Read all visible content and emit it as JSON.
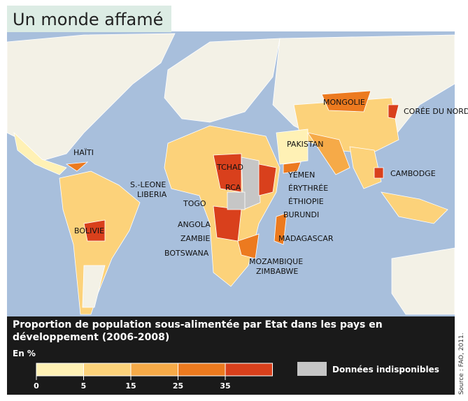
{
  "title": "Un monde affamé",
  "countries": [
    "MONGOLIE",
    "CORÉE DU NORD",
    "HAÏTI",
    "PAKISTAN",
    "TCHAD",
    "YÉMEN",
    "CAMBODGE",
    "S.-LEONE",
    "LIBERIA",
    "RCA",
    "ÉRYTHRÉE",
    "TOGO",
    "ÉTHIOPIE",
    "BURUNDI",
    "ANGOLA",
    "BOLIVIE",
    "MADAGASCAR",
    "ZAMBIE",
    "BOTSWANA",
    "MOZAMBIQUE",
    "ZIMBABWE"
  ],
  "legend": {
    "title": "Proportion de population sous-alimentée par Etat dans les pays en développement (2006-2008)",
    "unit": "En %",
    "ticks": [
      0,
      5,
      15,
      25,
      35
    ],
    "colors": [
      "#fff1b5",
      "#fcd27a",
      "#f6aa48",
      "#ec7a1f",
      "#d9401c"
    ],
    "missing": "Données indisponibles",
    "missing_color": "#c6c6c6"
  },
  "source": "Source : FAO, 2011."
}
